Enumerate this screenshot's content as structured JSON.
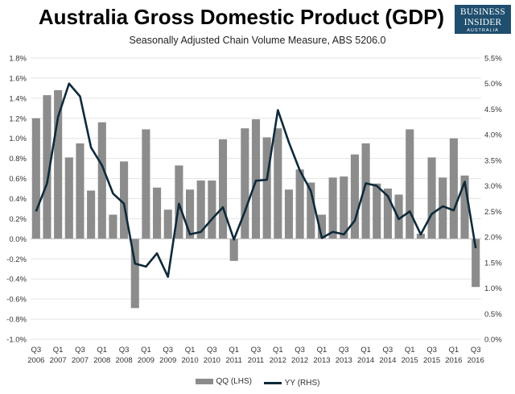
{
  "branding": {
    "line1": "BUSINESS",
    "line2": "INSIDER",
    "line3": "AUSTRALIA",
    "background": "#1f4e6e"
  },
  "chart_data": {
    "type": "bar",
    "title": "Australia Gross Domestic Product (GDP)",
    "subtitle": "Seasonally Adjusted Chain Volume Measure, ABS 5206.0",
    "categories": [
      "Q3 2006",
      "Q4 2006",
      "Q1 2007",
      "Q2 2007",
      "Q3 2007",
      "Q4 2007",
      "Q1 2008",
      "Q2 2008",
      "Q3 2008",
      "Q4 2008",
      "Q1 2009",
      "Q2 2009",
      "Q3 2009",
      "Q4 2009",
      "Q1 2010",
      "Q2 2010",
      "Q3 2010",
      "Q4 2010",
      "Q1 2011",
      "Q2 2011",
      "Q3 2011",
      "Q4 2011",
      "Q1 2012",
      "Q2 2012",
      "Q3 2012",
      "Q4 2012",
      "Q1 2013",
      "Q2 2013",
      "Q3 2013",
      "Q4 2013",
      "Q1 2014",
      "Q2 2014",
      "Q3 2014",
      "Q4 2014",
      "Q1 2015",
      "Q2 2015",
      "Q3 2015",
      "Q4 2015",
      "Q1 2016",
      "Q2 2016",
      "Q3 2016"
    ],
    "series": [
      {
        "name": "QQ (LHS)",
        "type": "bar",
        "axis": "left",
        "color": "#8c8c8c",
        "values": [
          1.2,
          1.43,
          1.48,
          0.81,
          0.95,
          0.48,
          1.16,
          0.24,
          0.77,
          -0.69,
          1.09,
          0.51,
          0.29,
          0.73,
          0.49,
          0.58,
          0.58,
          0.99,
          -0.22,
          1.1,
          1.19,
          1.01,
          1.1,
          0.49,
          0.69,
          0.56,
          0.24,
          0.61,
          0.62,
          0.84,
          0.95,
          0.55,
          0.5,
          0.44,
          1.09,
          0.05,
          0.81,
          0.61,
          1.0,
          0.63,
          -0.48
        ]
      },
      {
        "name": "YY (RHS)",
        "type": "line",
        "axis": "right",
        "color": "#0e2a3a",
        "values": [
          2.5,
          3.05,
          4.35,
          5.0,
          4.75,
          3.75,
          3.4,
          2.85,
          2.65,
          1.48,
          1.42,
          1.68,
          1.22,
          2.65,
          2.05,
          2.1,
          2.35,
          2.58,
          1.95,
          2.5,
          3.1,
          3.12,
          4.48,
          3.85,
          3.3,
          2.9,
          1.98,
          2.1,
          2.05,
          2.32,
          3.05,
          3.0,
          2.8,
          2.35,
          2.5,
          2.05,
          2.45,
          2.6,
          2.52,
          3.08,
          1.78
        ]
      }
    ],
    "y_left": {
      "min": -1.0,
      "max": 1.8,
      "step": 0.2
    },
    "y_right": {
      "min": 0.0,
      "max": 5.5,
      "step": 0.5
    },
    "y_left_ticks": [
      "1.8%",
      "1.6%",
      "1.4%",
      "1.2%",
      "1.0%",
      "0.8%",
      "0.6%",
      "0.4%",
      "0.2%",
      "0.0%",
      "-0.2%",
      "-0.4%",
      "-0.6%",
      "-0.8%",
      "-1.0%"
    ],
    "y_right_ticks": [
      "5.5%",
      "5.0%",
      "4.5%",
      "4.0%",
      "3.5%",
      "3.0%",
      "2.5%",
      "2.0%",
      "1.5%",
      "1.0%",
      "0.5%",
      "0.0%"
    ],
    "x_tick_labels": [
      {
        "q": "Q3",
        "y": "2006"
      },
      {
        "q": "Q1",
        "y": "2007"
      },
      {
        "q": "Q3",
        "y": "2007"
      },
      {
        "q": "Q1",
        "y": "2008"
      },
      {
        "q": "Q3",
        "y": "2008"
      },
      {
        "q": "Q1",
        "y": "2009"
      },
      {
        "q": "Q3",
        "y": "2009"
      },
      {
        "q": "Q1",
        "y": "2010"
      },
      {
        "q": "Q3",
        "y": "2010"
      },
      {
        "q": "Q1",
        "y": "2011"
      },
      {
        "q": "Q3",
        "y": "2011"
      },
      {
        "q": "Q1",
        "y": "2012"
      },
      {
        "q": "Q3",
        "y": "2012"
      },
      {
        "q": "Q1",
        "y": "2013"
      },
      {
        "q": "Q3",
        "y": "2013"
      },
      {
        "q": "Q1",
        "y": "2014"
      },
      {
        "q": "Q3",
        "y": "2014"
      },
      {
        "q": "Q1",
        "y": "2015"
      },
      {
        "q": "Q3",
        "y": "2015"
      },
      {
        "q": "Q1",
        "y": "2016"
      },
      {
        "q": "Q3",
        "y": "2016"
      }
    ],
    "grid": true,
    "legend_position": "bottom"
  }
}
